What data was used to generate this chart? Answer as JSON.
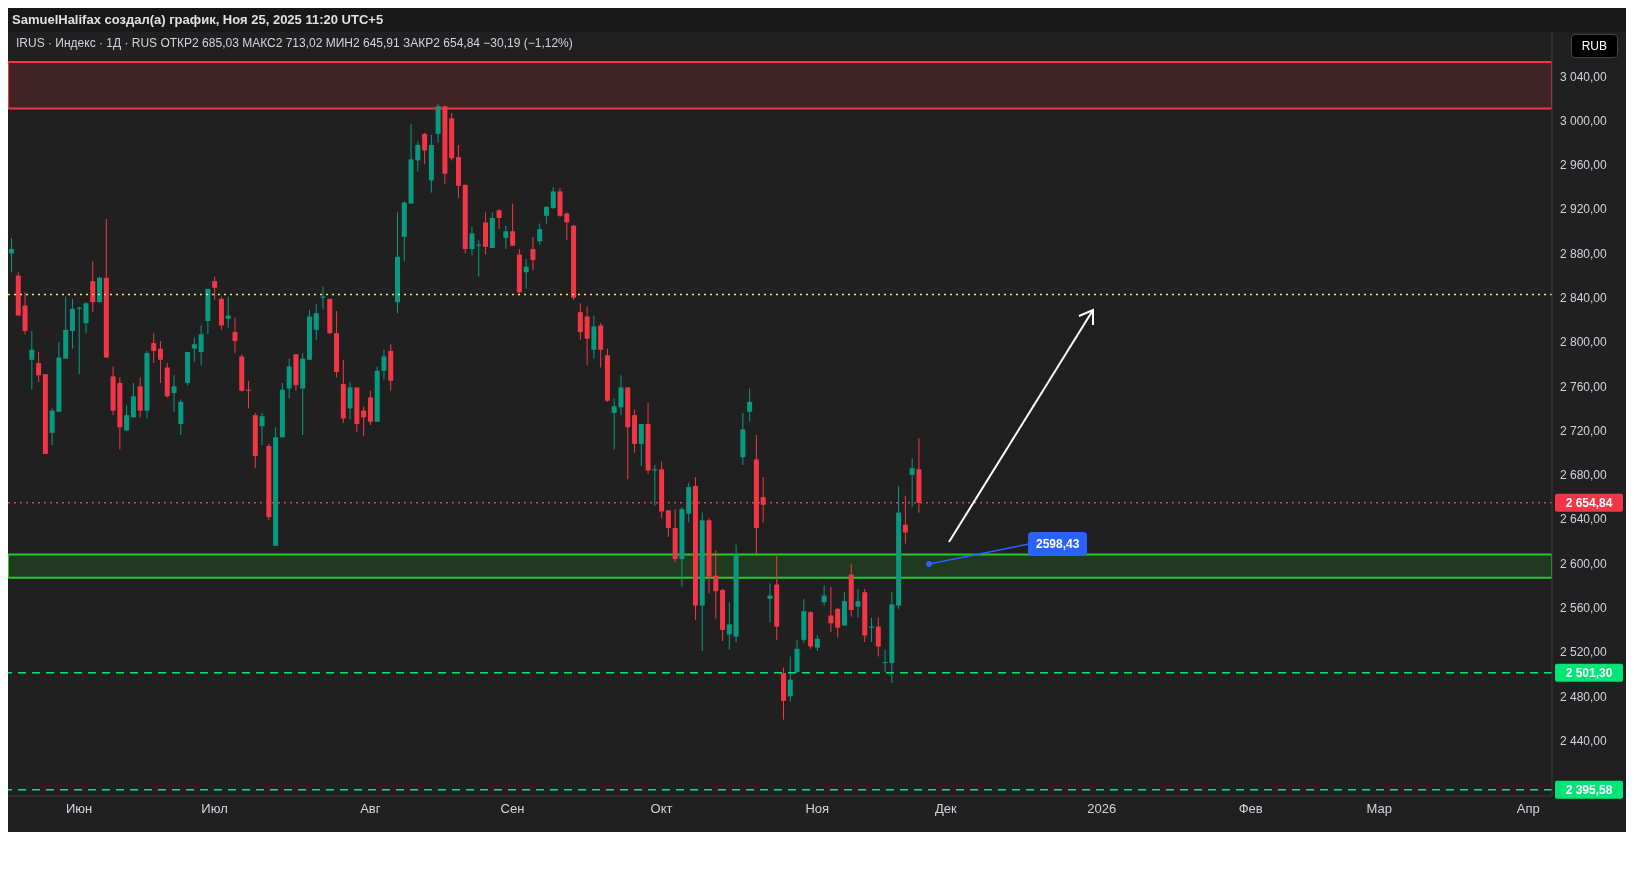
{
  "chart_data": {
    "type": "candlestick",
    "title": "SamuelHalifax создал(а) график, Ноя 25, 2025 11:20 UTC+5",
    "subtitle": "IRUS · Индекс · 1Д · RUS  ОТКР2 685,03  МАКС2 713,02  МИН2 645,91  ЗАКР2 654,84  −30,19 (−1,12%)",
    "categories": [
      null,
      null,
      null,
      null,
      null,
      null,
      null,
      null,
      null,
      null,
      "Июн",
      null,
      null,
      null,
      null,
      null,
      null,
      null,
      null,
      null,
      null,
      null,
      null,
      null,
      null,
      null,
      null,
      null,
      null,
      null,
      "Июл",
      null,
      null,
      null,
      null,
      null,
      null,
      null,
      null,
      null,
      null,
      null,
      null,
      null,
      null,
      null,
      null,
      null,
      null,
      null,
      null,
      null,
      null,
      "Авг",
      null,
      null,
      null,
      null,
      null,
      null,
      null,
      null,
      null,
      null,
      null,
      null,
      null,
      null,
      null,
      null,
      null,
      null,
      null,
      null,
      "Сен",
      null,
      null,
      null,
      null,
      null,
      null,
      null,
      null,
      null,
      null,
      null,
      null,
      null,
      null,
      null,
      null,
      null,
      null,
      null,
      null,
      null,
      "Окт",
      null,
      null,
      null,
      null,
      null,
      null,
      null,
      null,
      null,
      null,
      null,
      null,
      null,
      null,
      null,
      null,
      null,
      null,
      null,
      null,
      null,
      null,
      "Ноя",
      null,
      null,
      null,
      null,
      null,
      null,
      null,
      null,
      null,
      null,
      null,
      null,
      null,
      null,
      null,
      null,
      null,
      null,
      "Дек",
      null,
      null,
      null,
      null,
      null,
      null,
      null,
      null,
      null,
      null,
      null,
      null,
      null,
      null,
      null,
      null,
      null,
      null,
      null,
      null,
      null,
      null,
      "2026",
      null,
      null,
      null,
      null,
      null,
      null,
      null,
      null,
      null,
      null,
      null,
      null,
      null,
      null,
      null,
      null,
      null,
      null,
      null,
      null,
      null,
      "Фев",
      null,
      null,
      null,
      null,
      null,
      null,
      null,
      null,
      null,
      null,
      null,
      null,
      null,
      null,
      null,
      null,
      null,
      null,
      "Мар",
      null,
      null,
      null,
      null,
      null,
      null,
      null,
      null,
      null,
      null,
      null,
      null,
      null,
      null,
      null,
      null,
      null,
      null,
      null,
      null,
      null,
      "Апр",
      null,
      null,
      null
    ],
    "ohlc": [
      [
        2880,
        2894,
        2863,
        2884
      ],
      [
        2860,
        2863,
        2824,
        2824
      ],
      [
        2833,
        2845,
        2807,
        2810
      ],
      [
        2784,
        2810,
        2757,
        2793
      ],
      [
        2781,
        2791,
        2764,
        2770
      ],
      [
        2771,
        2771,
        2699,
        2699
      ],
      [
        2718,
        2740,
        2707,
        2738
      ],
      [
        2737,
        2800,
        2737,
        2786
      ],
      [
        2785,
        2841,
        2785,
        2811
      ],
      [
        2810,
        2839,
        2794,
        2830
      ],
      [
        2830,
        2832,
        2771,
        2831
      ],
      [
        2817,
        2836,
        2808,
        2835
      ],
      [
        2855,
        2873,
        2827,
        2836
      ],
      [
        2836,
        2859,
        2836,
        2858
      ],
      [
        2858,
        2911,
        2786,
        2786
      ],
      [
        2769,
        2778,
        2734,
        2738
      ],
      [
        2763,
        2768,
        2703,
        2723
      ],
      [
        2720,
        2743,
        2720,
        2734
      ],
      [
        2732,
        2763,
        2732,
        2751
      ],
      [
        2760,
        2768,
        2732,
        2738
      ],
      [
        2738,
        2792,
        2731,
        2790
      ],
      [
        2799,
        2808,
        2781,
        2792
      ],
      [
        2794,
        2801,
        2763,
        2784
      ],
      [
        2777,
        2781,
        2750,
        2751
      ],
      [
        2754,
        2770,
        2737,
        2760
      ],
      [
        2726,
        2748,
        2716,
        2746
      ],
      [
        2763,
        2791,
        2761,
        2791
      ],
      [
        2794,
        2804,
        2782,
        2798
      ],
      [
        2791,
        2815,
        2779,
        2807
      ],
      [
        2819,
        2848,
        2807,
        2848
      ],
      [
        2855,
        2859,
        2838,
        2849
      ],
      [
        2839,
        2841,
        2811,
        2815
      ],
      [
        2821,
        2841,
        2813,
        2824
      ],
      [
        2809,
        2822,
        2790,
        2801
      ],
      [
        2787,
        2789,
        2755,
        2756
      ],
      [
        2757,
        2765,
        2740,
        2756
      ],
      [
        2734,
        2736,
        2686,
        2697
      ],
      [
        2724,
        2736,
        2707,
        2733
      ],
      [
        2706,
        2708,
        2639,
        2642
      ],
      [
        2616,
        2723,
        2616,
        2714
      ],
      [
        2714,
        2763,
        2714,
        2757
      ],
      [
        2758,
        2785,
        2749,
        2778
      ],
      [
        2789,
        2789,
        2756,
        2761
      ],
      [
        2758,
        2790,
        2716,
        2785
      ],
      [
        2784,
        2829,
        2784,
        2823
      ],
      [
        2811,
        2834,
        2802,
        2826
      ],
      [
        2840,
        2850,
        2830,
        2841
      ],
      [
        2839,
        2839,
        2807,
        2808
      ],
      [
        2808,
        2828,
        2768,
        2773
      ],
      [
        2762,
        2784,
        2727,
        2731
      ],
      [
        2740,
        2764,
        2730,
        2759
      ],
      [
        2759,
        2759,
        2719,
        2726
      ],
      [
        2738,
        2742,
        2715,
        2732
      ],
      [
        2750,
        2756,
        2725,
        2728
      ],
      [
        2728,
        2778,
        2728,
        2774
      ],
      [
        2774,
        2793,
        2766,
        2787
      ],
      [
        2792,
        2798,
        2756,
        2765
      ],
      [
        2836,
        2917,
        2826,
        2877
      ],
      [
        2895,
        2927,
        2873,
        2926
      ],
      [
        2925,
        2997,
        2925,
        2965
      ],
      [
        2964,
        2981,
        2954,
        2978
      ],
      [
        2988,
        2989,
        2961,
        2973
      ],
      [
        2946,
        2987,
        2935,
        2978
      ],
      [
        2988,
        3015,
        2980,
        3013
      ],
      [
        3013,
        3013,
        2943,
        2952
      ],
      [
        3002,
        3007,
        2964,
        2966
      ],
      [
        2967,
        2978,
        2930,
        2941
      ],
      [
        2942,
        2942,
        2880,
        2884
      ],
      [
        2884,
        2904,
        2878,
        2898
      ],
      [
        2887,
        2892,
        2859,
        2888
      ],
      [
        2908,
        2917,
        2879,
        2886
      ],
      [
        2885,
        2917,
        2885,
        2912
      ],
      [
        2919,
        2920,
        2902,
        2912
      ],
      [
        2894,
        2905,
        2884,
        2900
      ],
      [
        2900,
        2925,
        2887,
        2887
      ],
      [
        2879,
        2884,
        2844,
        2845
      ],
      [
        2863,
        2875,
        2848,
        2868
      ],
      [
        2884,
        2895,
        2865,
        2874
      ],
      [
        2891,
        2907,
        2888,
        2902
      ],
      [
        2914,
        2923,
        2907,
        2922
      ],
      [
        2921,
        2940,
        2920,
        2936
      ],
      [
        2936,
        2939,
        2913,
        2914
      ],
      [
        2916,
        2917,
        2892,
        2908
      ],
      [
        2905,
        2906,
        2838,
        2840
      ],
      [
        2827,
        2835,
        2802,
        2809
      ],
      [
        2823,
        2832,
        2779,
        2803
      ],
      [
        2793,
        2824,
        2785,
        2814
      ],
      [
        2815,
        2817,
        2777,
        2793
      ],
      [
        2788,
        2794,
        2746,
        2747
      ],
      [
        2736,
        2749,
        2703,
        2742
      ],
      [
        2741,
        2770,
        2734,
        2759
      ],
      [
        2759,
        2759,
        2676,
        2723
      ],
      [
        2734,
        2739,
        2700,
        2708
      ],
      [
        2708,
        2726,
        2688,
        2726
      ],
      [
        2726,
        2745,
        2681,
        2684
      ],
      [
        2684,
        2689,
        2652,
        2685
      ],
      [
        2685,
        2692,
        2641,
        2647
      ],
      [
        2648,
        2648,
        2624,
        2632
      ],
      [
        2632,
        2649,
        2601,
        2604
      ],
      [
        2604,
        2651,
        2579,
        2649
      ],
      [
        2645,
        2673,
        2637,
        2669
      ],
      [
        2670,
        2678,
        2549,
        2562
      ],
      [
        2562,
        2646,
        2521,
        2639
      ],
      [
        2639,
        2641,
        2573,
        2588
      ],
      [
        2589,
        2612,
        2550,
        2575
      ],
      [
        2576,
        2577,
        2530,
        2540
      ],
      [
        2536,
        2565,
        2522,
        2545
      ],
      [
        2534,
        2617,
        2529,
        2608
      ],
      [
        2696,
        2736,
        2689,
        2721
      ],
      [
        2737,
        2758,
        2728,
        2746
      ],
      [
        2694,
        2716,
        2609,
        2632
      ],
      [
        2660,
        2678,
        2637,
        2653
      ],
      [
        2568,
        2582,
        2547,
        2571
      ],
      [
        2581,
        2607,
        2531,
        2543
      ],
      [
        2501,
        2506,
        2459,
        2476
      ],
      [
        2480,
        2516,
        2475,
        2495
      ],
      [
        2502,
        2531,
        2501,
        2523
      ],
      [
        2531,
        2568,
        2528,
        2557
      ],
      [
        2556,
        2557,
        2523,
        2525
      ],
      [
        2524,
        2535,
        2521,
        2532
      ],
      [
        2565,
        2580,
        2562,
        2571
      ],
      [
        2553,
        2579,
        2538,
        2546
      ],
      [
        2559,
        2560,
        2533,
        2542
      ],
      [
        2544,
        2574,
        2544,
        2566
      ],
      [
        2590,
        2600,
        2552,
        2558
      ],
      [
        2561,
        2577,
        2551,
        2566
      ],
      [
        2574,
        2577,
        2529,
        2535
      ],
      [
        2542,
        2551,
        2529,
        2543
      ],
      [
        2543,
        2551,
        2516,
        2525
      ],
      [
        2510,
        2522,
        2502,
        2511
      ],
      [
        2510,
        2574,
        2492,
        2563
      ],
      [
        2562,
        2670,
        2559,
        2646
      ],
      [
        2635,
        2661,
        2618,
        2628
      ],
      [
        2680,
        2695,
        2651,
        2686
      ],
      [
        2685.03,
        2713.02,
        2645.91,
        2654.84
      ],
      null,
      null,
      null,
      null,
      null,
      null,
      null,
      null,
      null,
      null,
      null,
      null,
      null,
      null,
      null,
      null,
      null,
      null,
      null,
      null,
      null,
      null,
      null,
      null,
      null,
      null,
      null,
      null,
      null,
      null,
      null,
      null,
      null,
      null,
      null,
      null,
      null,
      null,
      null,
      null,
      null,
      null,
      null,
      null,
      null,
      null,
      null,
      null,
      null,
      null,
      null,
      null,
      null,
      null,
      null,
      null,
      null,
      null,
      null,
      null,
      null,
      null,
      null,
      null,
      null,
      null,
      null,
      null,
      null,
      null,
      null,
      null,
      null,
      null,
      null,
      null,
      null,
      null,
      null,
      null,
      null,
      null,
      null,
      null,
      null,
      null,
      null,
      null,
      null,
      null,
      null,
      null,
      null
    ],
    "colors": [
      "#089981",
      "#f23645",
      "#f23645",
      "#089981",
      "#f23645",
      "#f23645",
      "#089981",
      "#089981",
      "#089981",
      "#089981",
      "#089981",
      "#089981",
      "#f23645",
      "#089981",
      "#f23645",
      "#f23645",
      "#f23645",
      "#089981",
      "#089981",
      "#f23645",
      "#089981",
      "#f23645",
      "#f23645",
      "#f23645",
      "#089981",
      "#089981",
      "#089981",
      "#089981",
      "#089981",
      "#089981",
      "#f23645",
      "#f23645",
      "#089981",
      "#f23645",
      "#f23645",
      "#f23645",
      "#f23645",
      "#089981",
      "#f23645",
      "#089981",
      "#089981",
      "#089981",
      "#f23645",
      "#089981",
      "#089981",
      "#089981",
      "#089981",
      "#f23645",
      "#f23645",
      "#f23645",
      "#089981",
      "#f23645",
      "#f23645",
      "#f23645",
      "#089981",
      "#089981",
      "#f23645",
      "#089981",
      "#089981",
      "#089981",
      "#089981",
      "#f23645",
      "#089981",
      "#089981",
      "#f23645",
      "#f23645",
      "#f23645",
      "#f23645",
      "#089981",
      "#089981",
      "#f23645",
      "#089981",
      "#f23645",
      "#089981",
      "#f23645",
      "#f23645",
      "#089981",
      "#f23645",
      "#089981",
      "#089981",
      "#089981",
      "#f23645",
      "#f23645",
      "#f23645",
      "#f23645",
      "#f23645",
      "#089981",
      "#f23645",
      "#f23645",
      "#089981",
      "#089981",
      "#f23645",
      "#f23645",
      "#089981",
      "#f23645",
      "#089981",
      "#f23645",
      "#f23645",
      "#f23645",
      "#089981",
      "#089981",
      "#f23645",
      "#089981",
      "#f23645",
      "#f23645",
      "#f23645",
      "#089981",
      "#089981",
      "#089981",
      "#089981",
      "#f23645",
      "#f23645",
      "#089981",
      "#f23645",
      "#f23645",
      "#089981",
      "#089981",
      "#089981",
      "#f23645",
      "#089981",
      "#089981",
      "#f23645",
      "#f23645",
      "#089981",
      "#f23645",
      "#089981",
      "#f23645",
      "#089981",
      "#f23645",
      "#089981",
      "#089981",
      "#089981",
      "#f23645",
      "#089981",
      "#f23645",
      null,
      null,
      null,
      null,
      null,
      null,
      null,
      null,
      null,
      null,
      null,
      null,
      null,
      null,
      null,
      null,
      null,
      null,
      null,
      null,
      null,
      null,
      null,
      null,
      null,
      null,
      null,
      null,
      null,
      null,
      null,
      null,
      null,
      null,
      null,
      null,
      null,
      null,
      null,
      null,
      null,
      null,
      null,
      null,
      null,
      null,
      null,
      null,
      null,
      null,
      null,
      null,
      null,
      null,
      null,
      null,
      null,
      null,
      null,
      null,
      null,
      null,
      null,
      null,
      null,
      null,
      null,
      null,
      null,
      null,
      null,
      null,
      null,
      null,
      null,
      null,
      null,
      null,
      null,
      null,
      null,
      null,
      null,
      null,
      null,
      null,
      null,
      null,
      null,
      null,
      null,
      null,
      null
    ],
    "ylim": [
      2390,
      3080
    ],
    "yticks": [
      {
        "value": 2440,
        "label": "2 440,00"
      },
      {
        "value": 2480,
        "label": "2 480,00"
      },
      {
        "value": 2520,
        "label": "2 520,00"
      },
      {
        "value": 2560,
        "label": "2 560,00"
      },
      {
        "value": 2600,
        "label": "2 600,00"
      },
      {
        "value": 2640,
        "label": "2 640,00"
      },
      {
        "value": 2680,
        "label": "2 680,00"
      },
      {
        "value": 2720,
        "label": "2 720,00"
      },
      {
        "value": 2760,
        "label": "2 760,00"
      },
      {
        "value": 2800,
        "label": "2 800,00"
      },
      {
        "value": 2840,
        "label": "2 840,00"
      },
      {
        "value": 2880,
        "label": "2 880,00"
      },
      {
        "value": 2920,
        "label": "2 920,00"
      },
      {
        "value": 2960,
        "label": "2 960,00"
      },
      {
        "value": 3000,
        "label": "3 000,00"
      },
      {
        "value": 3040,
        "label": "3 040,00"
      }
    ],
    "bands": [
      {
        "axis": "y",
        "from": 3011,
        "to": 3053,
        "color": "#f23645"
      },
      {
        "axis": "y",
        "from": 2587,
        "to": 2608,
        "color": "#22cc22"
      }
    ],
    "ref_lines": [
      {
        "axis": "y",
        "value": 2843,
        "color": "#ffeb3b",
        "line_style": "dotted"
      },
      {
        "axis": "y",
        "value": 2654.84,
        "label": "2 654,84",
        "color": "#f23645",
        "line_style": "dotted"
      },
      {
        "axis": "y",
        "value": 2501.3,
        "label": "2 501,30",
        "color": "#00e676",
        "line_style": "dashed"
      },
      {
        "axis": "y",
        "value": 2395.58,
        "label": "2 395,58",
        "color": "#00e676",
        "line_style": "dashed"
      }
    ],
    "annotations": [
      "RUB",
      "2598,43"
    ]
  }
}
